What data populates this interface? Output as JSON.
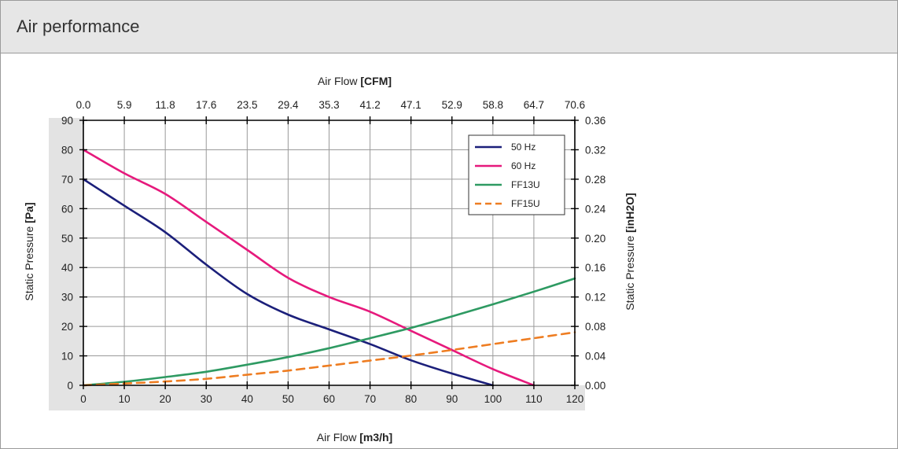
{
  "header": {
    "title": "Air performance"
  },
  "chart_data": {
    "type": "line",
    "x_bottom": {
      "label": "Air Flow",
      "unit": "[m3/h]",
      "ticks": [
        "0",
        "10",
        "20",
        "30",
        "40",
        "50",
        "60",
        "70",
        "80",
        "90",
        "100",
        "110",
        "120"
      ],
      "range": [
        0,
        120
      ]
    },
    "x_top": {
      "label": "Air Flow",
      "unit": "[CFM]",
      "ticks": [
        "0.0",
        "5.9",
        "11.8",
        "17.6",
        "23.5",
        "29.4",
        "35.3",
        "41.2",
        "47.1",
        "52.9",
        "58.8",
        "64.7",
        "70.6"
      ]
    },
    "y_left": {
      "label": "Static Pressure",
      "unit": "[Pa]",
      "ticks": [
        "0",
        "10",
        "20",
        "30",
        "40",
        "50",
        "60",
        "70",
        "80",
        "90"
      ],
      "range": [
        0,
        90
      ]
    },
    "y_right": {
      "label": "Static Pressure",
      "unit": "[inH2O]",
      "ticks": [
        "0.00",
        "0.04",
        "0.08",
        "0.12",
        "0.16",
        "0.20",
        "0.24",
        "0.28",
        "0.32",
        "0.36"
      ]
    },
    "grid": true,
    "legend_position": "top-right",
    "series": [
      {
        "name": "50 Hz",
        "color": "#1b1f7a",
        "dash": false,
        "points": [
          [
            0,
            70
          ],
          [
            10,
            61
          ],
          [
            20,
            52
          ],
          [
            30,
            41
          ],
          [
            40,
            31
          ],
          [
            50,
            24
          ],
          [
            60,
            19
          ],
          [
            70,
            14
          ],
          [
            80,
            8.5
          ],
          [
            90,
            4
          ],
          [
            100,
            0
          ]
        ]
      },
      {
        "name": "60 Hz",
        "color": "#e6197c",
        "dash": false,
        "points": [
          [
            0,
            80
          ],
          [
            10,
            72
          ],
          [
            20,
            65
          ],
          [
            30,
            55.5
          ],
          [
            40,
            46
          ],
          [
            50,
            36.5
          ],
          [
            60,
            30
          ],
          [
            70,
            25
          ],
          [
            80,
            18.5
          ],
          [
            90,
            12
          ],
          [
            100,
            5.5
          ],
          [
            110,
            0
          ]
        ]
      },
      {
        "name": "FF13U",
        "color": "#2e9a62",
        "dash": false,
        "points": [
          [
            0,
            0
          ],
          [
            10,
            1.2
          ],
          [
            20,
            2.8
          ],
          [
            30,
            4.6
          ],
          [
            40,
            7
          ],
          [
            50,
            9.6
          ],
          [
            60,
            12.6
          ],
          [
            70,
            16
          ],
          [
            80,
            19.5
          ],
          [
            90,
            23.4
          ],
          [
            100,
            27.5
          ],
          [
            110,
            31.8
          ],
          [
            120,
            36.3
          ]
        ]
      },
      {
        "name": "FF15U",
        "color": "#ee7d22",
        "dash": true,
        "points": [
          [
            0,
            0
          ],
          [
            10,
            0.6
          ],
          [
            20,
            1.3
          ],
          [
            30,
            2.2
          ],
          [
            40,
            3.6
          ],
          [
            50,
            5
          ],
          [
            60,
            6.7
          ],
          [
            70,
            8.4
          ],
          [
            80,
            10.1
          ],
          [
            90,
            12
          ],
          [
            100,
            14
          ],
          [
            110,
            16
          ],
          [
            120,
            18
          ]
        ]
      }
    ]
  }
}
